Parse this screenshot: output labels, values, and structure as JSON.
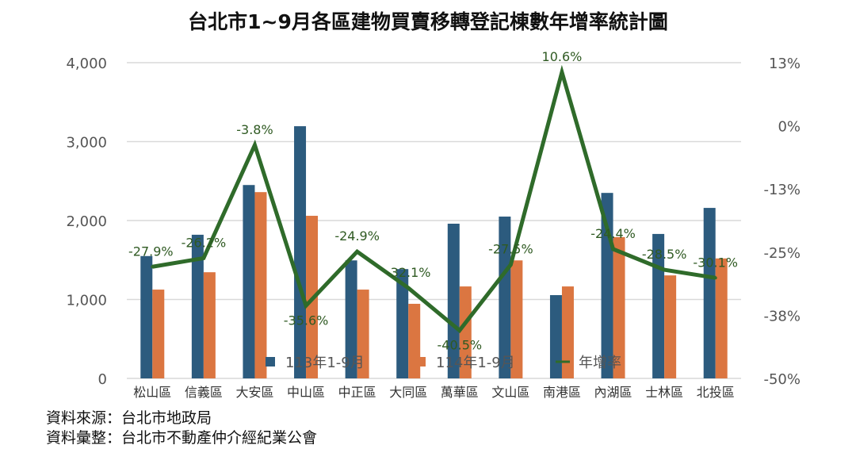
{
  "chart_data": {
    "type": "bar+line",
    "title": "台北市1~9月各區建物買賣移轉登記棟數年增率統計圖",
    "categories": [
      "松山區",
      "信義區",
      "大安區",
      "中山區",
      "中正區",
      "大同區",
      "萬華區",
      "文山區",
      "南港區",
      "內湖區",
      "士林區",
      "北投區"
    ],
    "series": [
      {
        "name": "113年1-9月",
        "type": "bar",
        "color": "#2c5b7e",
        "values": [
          1550,
          1820,
          2450,
          3195,
          1495,
          1385,
          1960,
          2050,
          1055,
          2350,
          1830,
          2160
        ]
      },
      {
        "name": "114年1-9月",
        "type": "bar",
        "color": "#db7641",
        "values": [
          1125,
          1345,
          2360,
          2060,
          1125,
          945,
          1165,
          1495,
          1165,
          1790,
          1305,
          1520
        ]
      },
      {
        "name": "年增率",
        "type": "line",
        "axis": "right",
        "color": "#2f6b2a",
        "values": [
          -27.9,
          -26.2,
          -3.8,
          -35.6,
          -24.9,
          -32.1,
          -40.5,
          -27.5,
          10.6,
          -24.4,
          -28.5,
          -30.1
        ],
        "labels": [
          "-27.9%",
          "-26.2%",
          "-3.8%",
          "-35.6%",
          "-24.9%",
          "-32.1%",
          "-40.5%",
          "-27.5%",
          "10.6%",
          "-24.4%",
          "-28.5%",
          "-30.1%"
        ]
      }
    ],
    "ylim": [
      0,
      4000
    ],
    "yticks": [
      "0",
      "1,000",
      "2,000",
      "3,000",
      "4,000"
    ],
    "y2lim": [
      -50,
      12.5
    ],
    "y2ticks": [
      "-50%",
      "-38%",
      "-25%",
      "-13%",
      "0%",
      "13%"
    ],
    "grid": true,
    "legend": "bottom-center"
  },
  "sources": [
    "資料來源：台北市地政局",
    "資料彙整：台北市不動產仲介經紀業公會"
  ]
}
